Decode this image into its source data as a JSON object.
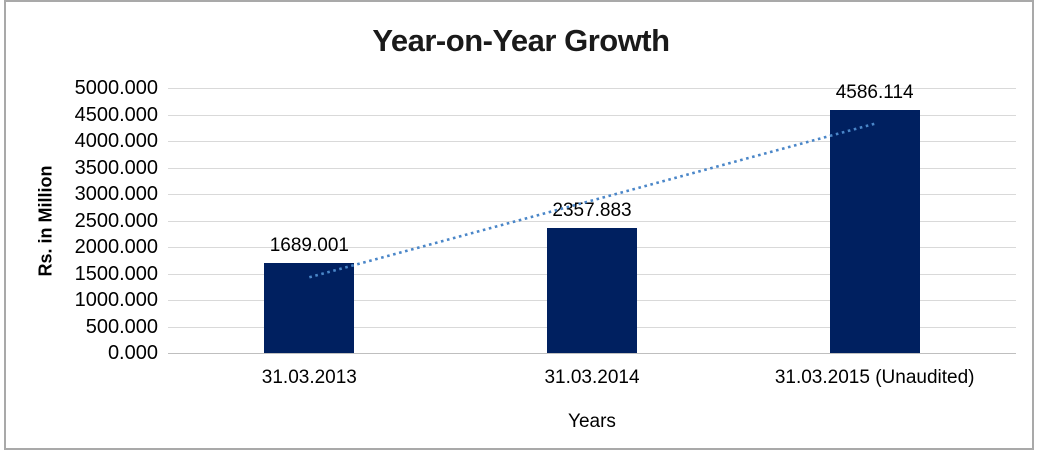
{
  "chart_data": {
    "type": "bar",
    "title": "Year-on-Year Growth",
    "categories": [
      "31.03.2013",
      "31.03.2014",
      "31.03.2015 (Unaudited)"
    ],
    "values": [
      1689.001,
      2357.883,
      4586.114
    ],
    "data_labels": [
      "1689.001",
      "2357.883",
      "4586.114"
    ],
    "xlabel": "Years",
    "ylabel": "Rs. in Million",
    "ylim": [
      0,
      5000
    ],
    "ytick_step": 500,
    "ytick_labels_top_to_bottom": [
      "5000.000",
      "4500.000",
      "4000.000",
      "3500.000",
      "3000.000",
      "2500.000",
      "2000.000",
      "1500.000",
      "1000.000",
      "500.000",
      "0.000"
    ],
    "grid": "horizontal-gridlines",
    "legend": "none",
    "trendline": {
      "type": "linear",
      "style": "dotted"
    },
    "colors": {
      "bar": "#002060",
      "trendline": "#4a86c8",
      "gridline": "#d9d9d9",
      "axis_line": "#bfbfbf",
      "text": "#000000",
      "frame_border": "#a9a9a9"
    }
  }
}
